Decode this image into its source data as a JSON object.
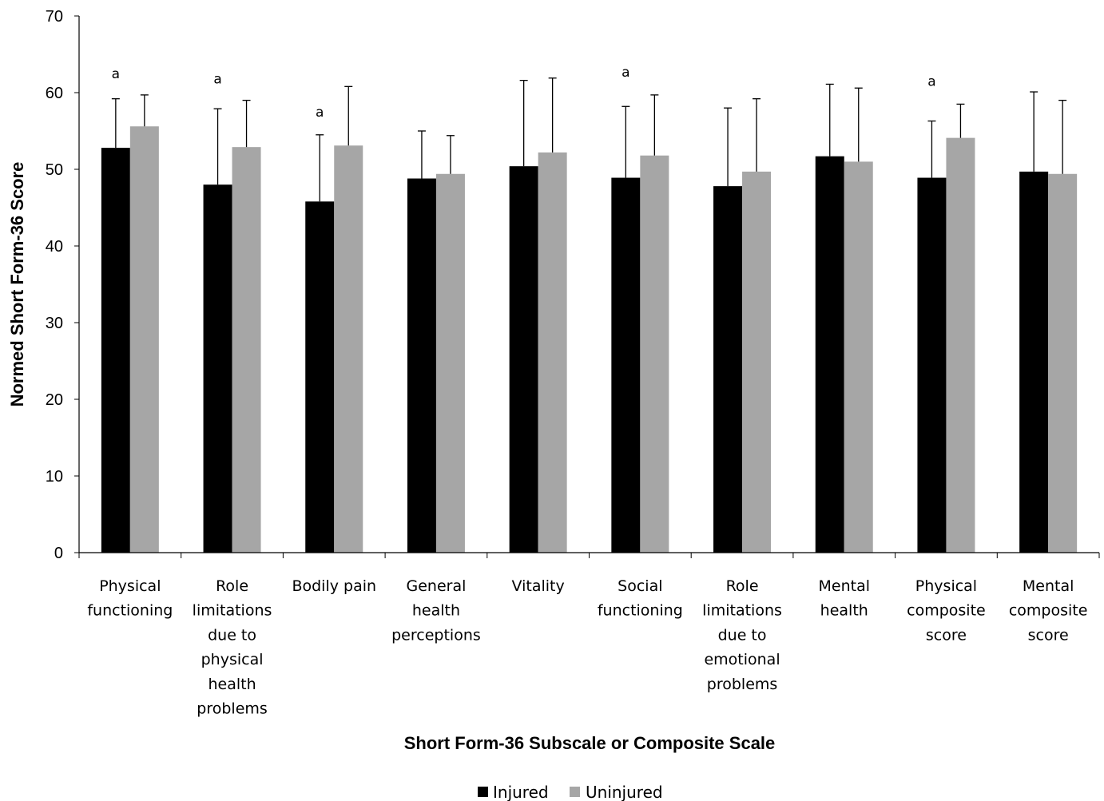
{
  "chart_data": {
    "type": "bar",
    "title": "",
    "xlabel": "Short Form-36 Subscale or Composite Scale",
    "ylabel": "Normed Short Form-36 Score",
    "ylim": [
      0,
      70
    ],
    "yticks": [
      0,
      10,
      20,
      30,
      40,
      50,
      60,
      70
    ],
    "grid": false,
    "legend_position": "bottom-center",
    "categories": [
      [
        "Physical",
        "functioning"
      ],
      [
        "Role",
        "limitations",
        "due to",
        "physical",
        "health",
        "problems"
      ],
      [
        "Bodily pain"
      ],
      [
        "General",
        "health",
        "perceptions"
      ],
      [
        "Vitality"
      ],
      [
        "Social",
        "functioning"
      ],
      [
        "Role",
        "limitations",
        "due to",
        "emotional",
        "problems"
      ],
      [
        "Mental",
        "health"
      ],
      [
        "Physical",
        "composite",
        "score"
      ],
      [
        "Mental",
        "composite",
        "score"
      ]
    ],
    "series": [
      {
        "name": "Injured",
        "color": "#000000",
        "values": [
          52.8,
          48.0,
          45.8,
          48.8,
          50.4,
          48.9,
          47.8,
          51.7,
          48.9,
          49.7
        ],
        "error_upper": [
          59.2,
          57.9,
          54.5,
          55.0,
          61.6,
          58.2,
          58.0,
          61.1,
          56.3,
          60.1
        ]
      },
      {
        "name": "Uninjured",
        "color": "#a6a6a6",
        "values": [
          55.6,
          52.9,
          53.1,
          49.4,
          52.2,
          51.8,
          49.7,
          51.0,
          54.1,
          49.4
        ],
        "error_upper": [
          59.7,
          59.0,
          60.8,
          54.4,
          61.9,
          59.7,
          59.2,
          60.6,
          58.5,
          59.0
        ]
      }
    ],
    "annotations": [
      {
        "category_index": 0,
        "text": "a",
        "y": 62.5
      },
      {
        "category_index": 1,
        "text": "a",
        "y": 61.8
      },
      {
        "category_index": 2,
        "text": "a",
        "y": 57.5
      },
      {
        "category_index": 5,
        "text": "a",
        "y": 62.7
      },
      {
        "category_index": 8,
        "text": "a",
        "y": 61.5
      }
    ]
  }
}
